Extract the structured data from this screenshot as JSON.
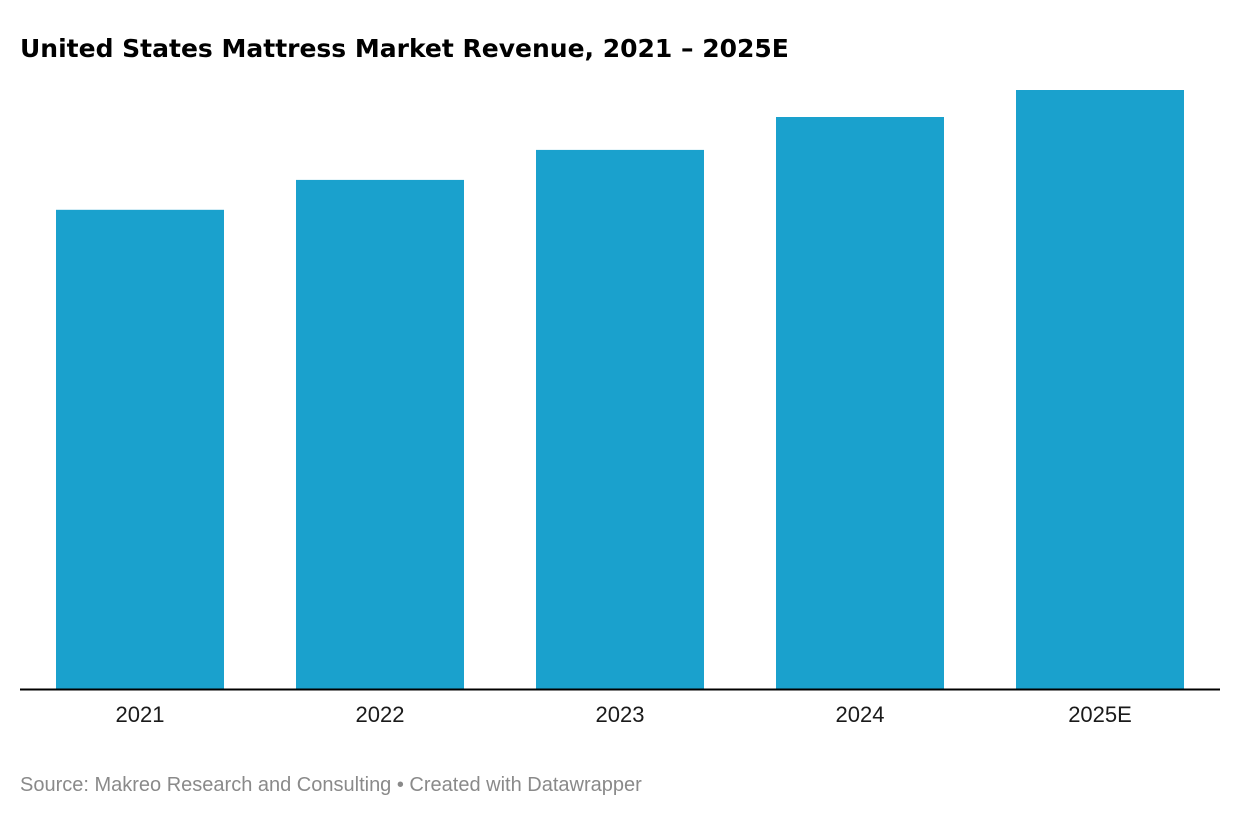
{
  "chart_data": {
    "type": "bar",
    "title": "United States Mattress Market Revenue, 2021 – 2025E",
    "categories": [
      "2021",
      "2022",
      "2023",
      "2024",
      "2025E"
    ],
    "values": [
      80,
      85,
      90,
      95.5,
      100
    ],
    "xlabel": "",
    "ylabel": "",
    "ylim": [
      0,
      100
    ],
    "grid": false,
    "legend": "none",
    "bar_color": "#1aa1cd",
    "axis_color": "#000000"
  },
  "footer": {
    "source": "Source: Makreo Research and Consulting • Created with Datawrapper"
  }
}
